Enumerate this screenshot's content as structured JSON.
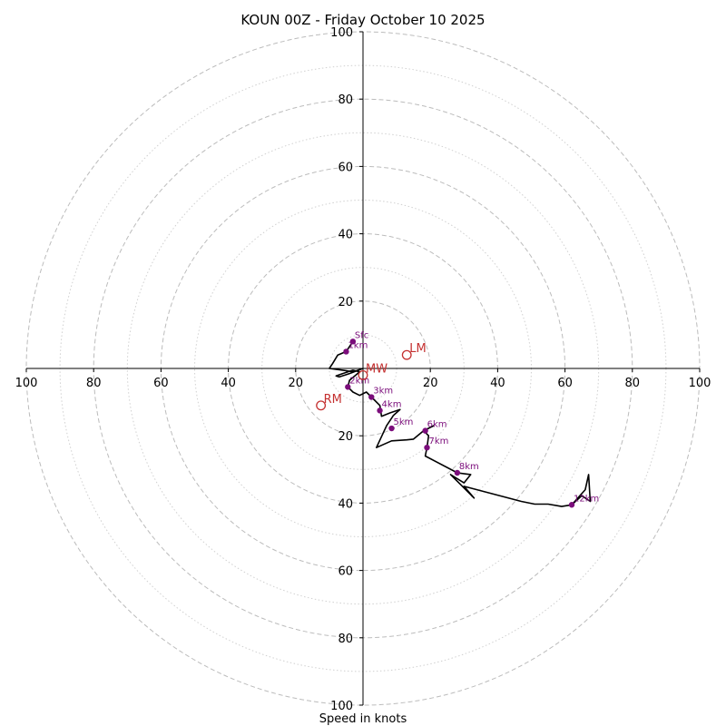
{
  "chart_data": {
    "type": "hodograph",
    "title": "KOUN 00Z - Friday October 10 2025",
    "xlabel": "Speed in knots",
    "units": "knots",
    "max_speed": 100,
    "ring_interval": 20,
    "minor_ring_interval": 10,
    "x_ticks": [
      {
        "value": -100,
        "label": "100"
      },
      {
        "value": -80,
        "label": "80"
      },
      {
        "value": -60,
        "label": "60"
      },
      {
        "value": -40,
        "label": "40"
      },
      {
        "value": -20,
        "label": "20"
      },
      {
        "value": 20,
        "label": "20"
      },
      {
        "value": 40,
        "label": "40"
      },
      {
        "value": 60,
        "label": "60"
      },
      {
        "value": 80,
        "label": "80"
      },
      {
        "value": 100,
        "label": "100"
      }
    ],
    "y_ticks": [
      {
        "value": 100,
        "label": "100"
      },
      {
        "value": 80,
        "label": "80"
      },
      {
        "value": 60,
        "label": "60"
      },
      {
        "value": 40,
        "label": "40"
      },
      {
        "value": 20,
        "label": "20"
      },
      {
        "value": -20,
        "label": "20"
      },
      {
        "value": -40,
        "label": "40"
      },
      {
        "value": -60,
        "label": "60"
      },
      {
        "value": -80,
        "label": "80"
      },
      {
        "value": -100,
        "label": "100"
      }
    ],
    "trace": [
      [
        -3,
        8
      ],
      [
        -5,
        5
      ],
      [
        -7.5,
        4
      ],
      [
        -9,
        1.5
      ],
      [
        -10,
        0
      ],
      [
        -6,
        -0.5
      ],
      [
        -3,
        -1
      ],
      [
        0,
        0
      ],
      [
        -4,
        -1.5
      ],
      [
        -7,
        -2.5
      ],
      [
        -8,
        -2.2
      ],
      [
        -6,
        -1.5
      ],
      [
        -3,
        -0.5
      ],
      [
        -1,
        -1
      ],
      [
        -4,
        -3.5
      ],
      [
        -4.5,
        -5.5
      ],
      [
        -3,
        -7
      ],
      [
        -1,
        -8
      ],
      [
        1,
        -7
      ],
      [
        2.5,
        -8.5
      ],
      [
        5,
        -11
      ],
      [
        5.5,
        -14.2
      ],
      [
        8,
        -13.2
      ],
      [
        11,
        -12.2
      ],
      [
        9,
        -14
      ],
      [
        7,
        -17
      ],
      [
        4,
        -23.5
      ],
      [
        8.5,
        -21.5
      ],
      [
        13,
        -21.2
      ],
      [
        15,
        -21
      ],
      [
        18,
        -18.5
      ],
      [
        21,
        -17
      ],
      [
        18,
        -18.5
      ],
      [
        19.5,
        -20
      ],
      [
        19,
        -23.5
      ],
      [
        18.5,
        -26
      ],
      [
        28,
        -31
      ],
      [
        32,
        -31.5
      ],
      [
        30,
        -34
      ],
      [
        26,
        -31.5
      ],
      [
        33,
        -38.5
      ],
      [
        30,
        -35
      ],
      [
        47,
        -39.5
      ],
      [
        51,
        -40.3
      ],
      [
        55,
        -40.3
      ],
      [
        59,
        -41
      ],
      [
        62,
        -40.5
      ],
      [
        65,
        -37.8
      ],
      [
        67.5,
        -39.5
      ],
      [
        67,
        -31.5
      ],
      [
        66,
        -36
      ],
      [
        62,
        -40.5
      ]
    ],
    "markers": [
      {
        "label": "Sfc",
        "u": -3,
        "v": 8
      },
      {
        "label": "1km",
        "u": -5,
        "v": 5
      },
      {
        "label": "2km",
        "u": -4.5,
        "v": -5.5
      },
      {
        "label": "3km",
        "u": 2.5,
        "v": -8.5
      },
      {
        "label": "4km",
        "u": 5,
        "v": -12.5
      },
      {
        "label": "5km",
        "u": 8.5,
        "v": -17.8
      },
      {
        "label": "6km",
        "u": 18.5,
        "v": -18.5
      },
      {
        "label": "7km",
        "u": 19,
        "v": -23.5
      },
      {
        "label": "8km",
        "u": 28,
        "v": -31
      },
      {
        "label": "12km",
        "u": 62,
        "v": -40.5
      }
    ],
    "storm_motions": [
      {
        "label": "LM",
        "u": 13,
        "v": 4
      },
      {
        "label": "MW",
        "u": 0,
        "v": -2
      },
      {
        "label": "RM",
        "u": -12.5,
        "v": -11
      }
    ]
  }
}
